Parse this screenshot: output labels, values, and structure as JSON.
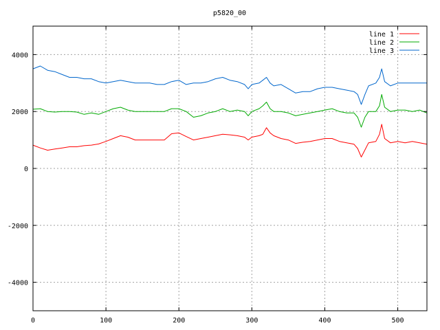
{
  "chart_data": {
    "type": "line",
    "title": "p5820_00",
    "xlabel": "",
    "ylabel": "",
    "xlim": [
      0,
      540
    ],
    "ylim": [
      -5000,
      5000
    ],
    "x_ticks": [
      0,
      100,
      200,
      300,
      400,
      500
    ],
    "y_ticks": [
      -4000,
      -2000,
      0,
      2000,
      4000
    ],
    "grid": true,
    "legend_position": "top-right",
    "series": [
      {
        "name": "line 1",
        "color": "#ff0000",
        "x": [
          0,
          10,
          20,
          30,
          40,
          50,
          60,
          70,
          80,
          90,
          100,
          110,
          120,
          130,
          140,
          150,
          160,
          170,
          180,
          190,
          200,
          210,
          220,
          230,
          240,
          250,
          260,
          270,
          280,
          290,
          295,
          300,
          310,
          315,
          320,
          325,
          330,
          340,
          350,
          360,
          370,
          380,
          390,
          400,
          410,
          420,
          430,
          440,
          445,
          450,
          455,
          460,
          470,
          475,
          478,
          482,
          490,
          500,
          510,
          520,
          530,
          540
        ],
        "y": [
          820,
          720,
          640,
          680,
          720,
          760,
          760,
          800,
          820,
          860,
          950,
          1050,
          1150,
          1100,
          1000,
          1000,
          1000,
          1000,
          1000,
          1220,
          1250,
          1120,
          1000,
          1050,
          1100,
          1150,
          1200,
          1180,
          1150,
          1100,
          1000,
          1100,
          1150,
          1200,
          1430,
          1250,
          1150,
          1050,
          1000,
          880,
          920,
          950,
          1000,
          1050,
          1050,
          950,
          900,
          850,
          700,
          400,
          650,
          900,
          950,
          1200,
          1550,
          1050,
          900,
          950,
          900,
          950,
          900,
          850
        ]
      },
      {
        "name": "line 2",
        "color": "#00aa00",
        "x": [
          0,
          10,
          20,
          30,
          40,
          50,
          60,
          70,
          80,
          90,
          100,
          110,
          120,
          130,
          140,
          150,
          160,
          170,
          180,
          190,
          200,
          210,
          220,
          230,
          240,
          250,
          260,
          270,
          280,
          290,
          295,
          300,
          310,
          315,
          320,
          325,
          330,
          340,
          350,
          360,
          370,
          380,
          390,
          400,
          410,
          420,
          430,
          440,
          445,
          450,
          455,
          460,
          470,
          475,
          478,
          482,
          490,
          500,
          510,
          520,
          530,
          540
        ],
        "y": [
          2080,
          2100,
          2000,
          1980,
          2000,
          2000,
          1980,
          1900,
          1950,
          1900,
          2000,
          2100,
          2150,
          2050,
          2000,
          2000,
          2000,
          2000,
          2000,
          2100,
          2100,
          2000,
          1800,
          1850,
          1950,
          2000,
          2100,
          2000,
          2050,
          2000,
          1850,
          2000,
          2100,
          2200,
          2330,
          2100,
          2000,
          2000,
          1950,
          1850,
          1900,
          1950,
          2000,
          2050,
          2100,
          2000,
          1950,
          1950,
          1800,
          1450,
          1800,
          2000,
          2000,
          2200,
          2600,
          2150,
          2000,
          2050,
          2050,
          2000,
          2050,
          1950
        ]
      },
      {
        "name": "line 3",
        "color": "#0066cc",
        "x": [
          0,
          10,
          20,
          30,
          40,
          50,
          60,
          70,
          80,
          90,
          100,
          110,
          120,
          130,
          140,
          150,
          160,
          170,
          180,
          190,
          200,
          210,
          220,
          230,
          240,
          250,
          260,
          270,
          280,
          290,
          295,
          300,
          310,
          315,
          320,
          325,
          330,
          340,
          350,
          360,
          370,
          380,
          390,
          400,
          410,
          420,
          430,
          440,
          445,
          450,
          455,
          460,
          470,
          475,
          478,
          482,
          490,
          500,
          510,
          520,
          530,
          540
        ],
        "y": [
          3500,
          3600,
          3450,
          3400,
          3300,
          3200,
          3200,
          3150,
          3150,
          3050,
          3000,
          3050,
          3100,
          3050,
          3000,
          3000,
          3000,
          2950,
          2950,
          3050,
          3100,
          2950,
          3000,
          3000,
          3050,
          3150,
          3200,
          3100,
          3050,
          2950,
          2800,
          2950,
          3000,
          3100,
          3200,
          3000,
          2900,
          2950,
          2800,
          2650,
          2700,
          2700,
          2800,
          2850,
          2850,
          2800,
          2750,
          2700,
          2600,
          2250,
          2600,
          2900,
          3000,
          3200,
          3500,
          3050,
          2900,
          3000,
          3000,
          3000,
          3000,
          3000
        ]
      }
    ]
  }
}
